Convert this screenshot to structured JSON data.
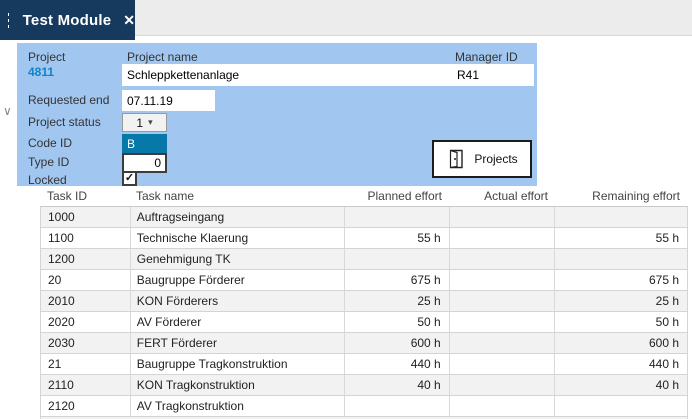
{
  "window": {
    "tab_title": "Test Module"
  },
  "icons": {
    "close": "✕",
    "dropdown_arrow": "▾",
    "collapse_chevron": "∨",
    "checkbox_check": "✓"
  },
  "colors": {
    "tab_bg": "#16395E",
    "topbar_bg": "#ECECEC",
    "panel_bg": "#A1C7F1",
    "teal_highlight": "#0779A8",
    "link_blue": "#0E84C6",
    "row_stripe": "#F2F2F2",
    "grid_line": "#D9D9D9"
  },
  "form": {
    "project": {
      "label": "Project",
      "value": "4811"
    },
    "project_name": {
      "label": "Project name",
      "value": "Schleppkettenanlage"
    },
    "manager_id": {
      "label": "Manager ID",
      "value": "R41"
    },
    "requested_end": {
      "label": "Requested end",
      "value": "07.11.19"
    },
    "project_status": {
      "label": "Project status",
      "value": "1"
    },
    "code_id": {
      "label": "Code ID",
      "value": "B"
    },
    "type_id": {
      "label": "Type ID",
      "value": "0"
    },
    "locked": {
      "label": "Locked",
      "checked": true
    },
    "projects_button_label": "Projects"
  },
  "table": {
    "columns": [
      {
        "key": "task_id",
        "label": "Task ID",
        "align": "left"
      },
      {
        "key": "task_name",
        "label": "Task name",
        "align": "left"
      },
      {
        "key": "planned",
        "label": "Planned effort",
        "align": "right"
      },
      {
        "key": "actual",
        "label": "Actual effort",
        "align": "right"
      },
      {
        "key": "remaining",
        "label": "Remaining effort",
        "align": "right"
      }
    ],
    "rows": [
      {
        "task_id": "1000",
        "task_name": "Auftragseingang",
        "planned": "",
        "actual": "",
        "remaining": ""
      },
      {
        "task_id": "1100",
        "task_name": "Technische Klaerung",
        "planned": "55 h",
        "actual": "",
        "remaining": "55 h"
      },
      {
        "task_id": "1200",
        "task_name": "Genehmigung TK",
        "planned": "",
        "actual": "",
        "remaining": ""
      },
      {
        "task_id": "20",
        "task_name": "Baugruppe Förderer",
        "planned": "675 h",
        "actual": "",
        "remaining": "675 h"
      },
      {
        "task_id": "2010",
        "task_name": "KON Förderers",
        "planned": "25 h",
        "actual": "",
        "remaining": "25 h"
      },
      {
        "task_id": "2020",
        "task_name": "AV Förderer",
        "planned": "50 h",
        "actual": "",
        "remaining": "50 h"
      },
      {
        "task_id": "2030",
        "task_name": "FERT Förderer",
        "planned": "600 h",
        "actual": "",
        "remaining": "600 h"
      },
      {
        "task_id": "21",
        "task_name": "Baugruppe Tragkonstruktion",
        "planned": "440 h",
        "actual": "",
        "remaining": "440 h"
      },
      {
        "task_id": "2110",
        "task_name": "KON Tragkonstruktion",
        "planned": "40 h",
        "actual": "",
        "remaining": "40 h"
      },
      {
        "task_id": "2120",
        "task_name": "AV Tragkonstruktion",
        "planned": "",
        "actual": "",
        "remaining": ""
      }
    ]
  }
}
